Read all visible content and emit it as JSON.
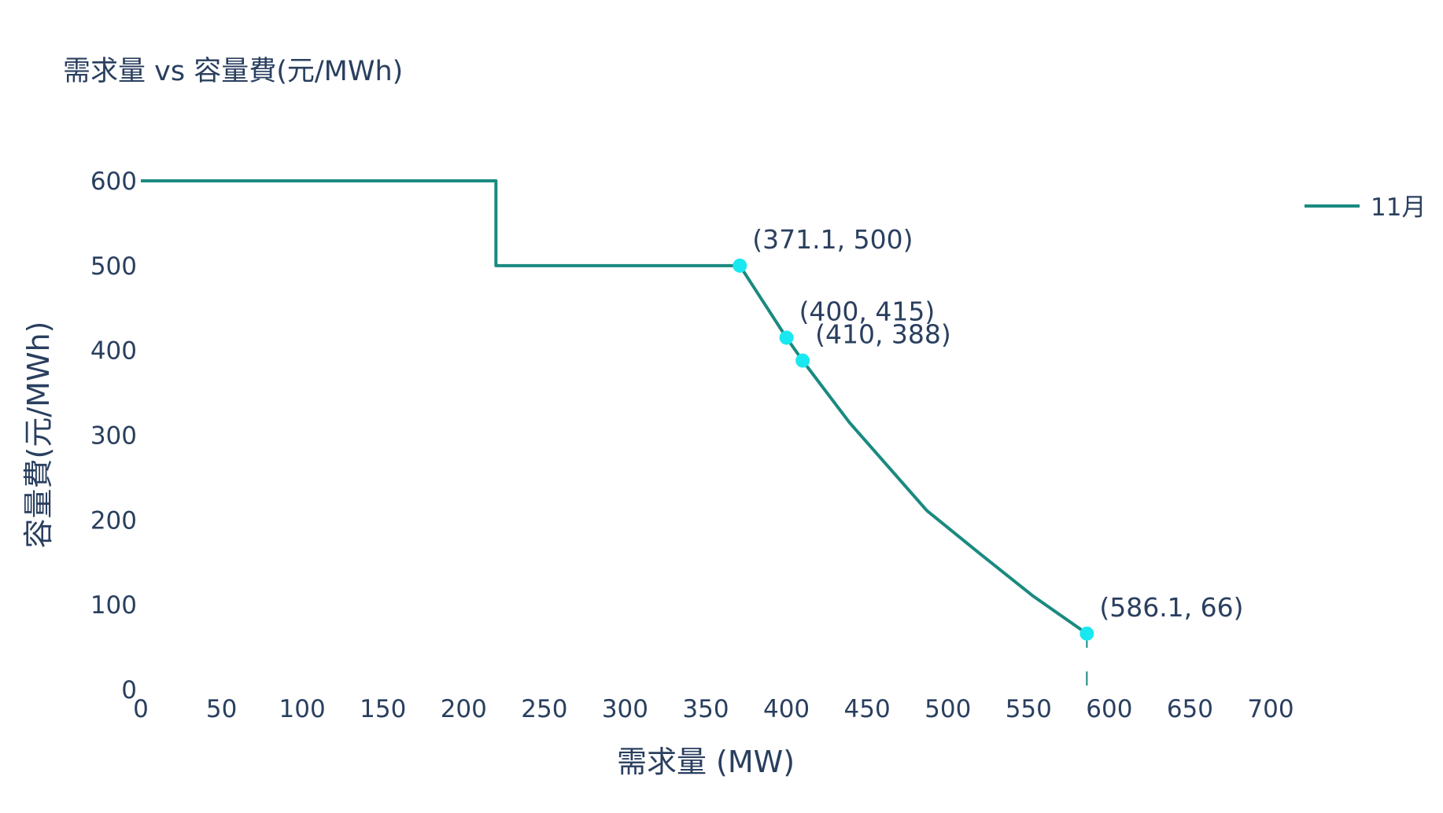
{
  "chart_data": {
    "type": "line",
    "title": "需求量 vs 容量費(元/MWh)",
    "xlabel": "需求量 (MW)",
    "ylabel": "容量費(元/MWh)",
    "xlim": [
      0,
      700
    ],
    "ylim": [
      0,
      600
    ],
    "x_ticks": [
      0,
      50,
      100,
      150,
      200,
      250,
      300,
      350,
      400,
      450,
      500,
      550,
      600,
      650,
      700
    ],
    "y_ticks": [
      0,
      100,
      200,
      300,
      400,
      500,
      600
    ],
    "grid": false,
    "legend_position": "right",
    "line_color": "#1a8a80",
    "marker_color": "#1ae8f0",
    "text_color": "#2a3f5f",
    "series": [
      {
        "name": "11月",
        "x": [
          0,
          220,
          220,
          371.1,
          400,
          410,
          439,
          487,
          520,
          553,
          586.1
        ],
        "y": [
          600,
          600,
          500,
          500,
          415,
          388,
          315,
          211,
          160,
          110,
          66
        ]
      }
    ],
    "highlighted_points": [
      {
        "x": 371.1,
        "y": 500,
        "label": "(371.1, 500)"
      },
      {
        "x": 400,
        "y": 415,
        "label": "(400, 415)"
      },
      {
        "x": 410,
        "y": 388,
        "label": "(410, 388)"
      },
      {
        "x": 586.1,
        "y": 66,
        "label": "(586.1, 66)"
      }
    ],
    "reference_line": {
      "x": 586.1,
      "from_y": 66,
      "to_y": 0,
      "style": "dashed"
    }
  }
}
